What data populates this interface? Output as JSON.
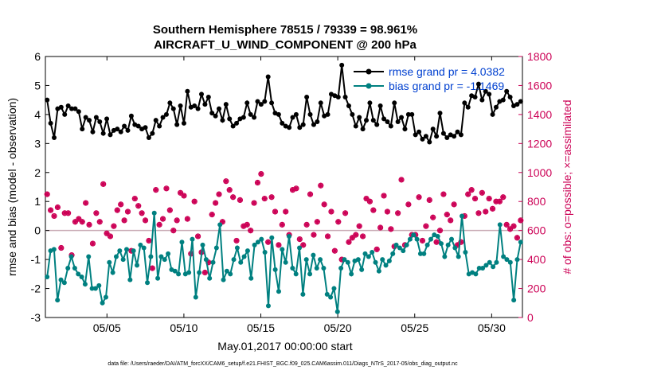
{
  "chart_data": {
    "type": "line",
    "title": "Southern Hemisphere 78515 / 79339 = 98.961%",
    "subtitle": "AIRCRAFT_U_WIND_COMPONENT @ 200 hPa",
    "xlabel": "May.01,2017 00:00:00 start",
    "ylabel_left": "rmse and bias (model - observation)",
    "ylabel_right": "# of obs: o=possible; ×=assimilated",
    "footer": "data file: /Users/raeder/DAI/ATM_forcXX/CAM6_setup/f.e21.FHIST_BGC.f09_025.CAM6assim.011/Diags_NTrS_2017-05/obs_diag_output.nc",
    "x_tick_labels": [
      "05/05",
      "05/10",
      "05/15",
      "05/20",
      "05/25",
      "05/30"
    ],
    "x_tick_values": [
      5,
      10,
      15,
      20,
      25,
      30
    ],
    "x_range": [
      1,
      32
    ],
    "ylim_left": [
      -3,
      6
    ],
    "y_ticks_left": [
      "-3",
      "-2",
      "-1",
      "0",
      "1",
      "2",
      "3",
      "4",
      "5",
      "6"
    ],
    "ylim_right": [
      0,
      1800
    ],
    "y_ticks_right": [
      "0",
      "200",
      "400",
      "600",
      "800",
      "1000",
      "1200",
      "1400",
      "1600",
      "1800"
    ],
    "colors": {
      "rmse": "#000000",
      "bias": "#008080",
      "obs": "#cc0055",
      "zero_line": "#c8aab4",
      "legend_text": "#0040d0"
    },
    "legend": {
      "placement": "top-right",
      "rmse": "rmse grand pr = 4.0382",
      "bias": "bias grand pr = -1.1469"
    },
    "series": [
      {
        "name": "rmse",
        "axis": "left",
        "values": [
          4.5,
          3.7,
          3.2,
          4.2,
          4.25,
          4.0,
          4.3,
          4.2,
          4.2,
          4.1,
          3.5,
          3.9,
          3.8,
          3.4,
          3.9,
          3.75,
          3.35,
          3.85,
          3.3,
          3.45,
          3.5,
          3.4,
          3.6,
          3.45,
          3.95,
          3.65,
          3.6,
          3.5,
          3.55,
          3.2,
          3.35,
          3.8,
          3.6,
          3.9,
          4.0,
          4.4,
          4.2,
          3.65,
          4.3,
          3.7,
          4.8,
          4.25,
          4.3,
          4.2,
          4.7,
          4.35,
          4.6,
          4.05,
          3.95,
          4.2,
          3.8,
          4.35,
          3.85,
          3.6,
          3.7,
          3.85,
          3.9,
          4.4,
          4.0,
          3.9,
          4.45,
          4.35,
          4.45,
          5.3,
          4.4,
          4.05,
          4.0,
          3.7,
          3.6,
          3.55,
          3.9,
          4.0,
          3.55,
          3.65,
          4.6,
          4.0,
          3.65,
          3.75,
          4.4,
          3.95,
          4.0,
          4.7,
          4.65,
          4.6,
          5.7,
          4.6,
          4.3,
          4.0,
          3.6,
          3.9,
          3.5,
          3.8,
          4.4,
          3.8,
          3.65,
          4.3,
          3.85,
          3.75,
          3.6,
          4.4,
          3.75,
          3.9,
          3.5,
          4.0,
          4.0,
          3.3,
          3.4,
          3.15,
          3.25,
          3.05,
          3.5,
          3.25,
          4.05,
          3.35,
          3.2,
          3.3,
          3.25,
          3.4,
          3.3,
          4.4,
          4.25,
          4.65,
          4.6,
          5.05,
          4.5,
          4.8,
          4.7,
          4.0,
          4.25,
          4.45,
          4.5,
          4.8,
          4.6,
          4.3,
          4.35,
          4.45
        ]
      },
      {
        "name": "bias",
        "axis": "left",
        "values": [
          -1.6,
          -0.7,
          -0.65,
          -2.4,
          -1.7,
          -1.8,
          -1.3,
          -0.9,
          -1.3,
          -1.5,
          -1.6,
          -1.85,
          -0.9,
          -2.0,
          -2.0,
          -1.9,
          -2.5,
          -2.3,
          -1.1,
          -1.45,
          -0.9,
          -0.7,
          -1.0,
          -0.65,
          -1.7,
          -0.7,
          -1.2,
          -0.5,
          -0.6,
          -1.8,
          -0.9,
          0.6,
          -1.65,
          -0.9,
          -1.0,
          -0.8,
          -1.35,
          -1.4,
          -1.5,
          -0.4,
          -1.5,
          -1.45,
          -0.3,
          -2.3,
          -1.45,
          -0.5,
          -1.0,
          -1.65,
          -1.1,
          -0.6,
          0.2,
          -1.7,
          -1.4,
          -1.5,
          -1.0,
          -0.6,
          -1.1,
          -0.9,
          -0.7,
          -1.65,
          -0.5,
          -0.4,
          -0.3,
          -0.75,
          -2.6,
          -0.25,
          -1.35,
          -2.1,
          -0.65,
          -1.1,
          -0.2,
          -1.3,
          -1.5,
          -0.6,
          -2.2,
          -1.0,
          -1.5,
          -0.85,
          -1.3,
          -1.0,
          -1.3,
          -2.2,
          -2.3,
          -2.0,
          -2.8,
          -1.3,
          -1.0,
          -1.1,
          -1.5,
          -1.05,
          -1.0,
          -1.35,
          -0.8,
          -0.9,
          -0.75,
          -1.1,
          -1.4,
          -1.0,
          -1.2,
          -1.05,
          -0.8,
          -0.5,
          -0.6,
          -0.7,
          -0.5,
          -0.3,
          -0.15,
          -0.3,
          -0.8,
          -0.8,
          -0.5,
          -0.3,
          -0.15,
          -0.2,
          -0.45,
          -0.9,
          -0.5,
          -0.3,
          -0.6,
          -0.9,
          0.5,
          -0.75,
          -1.5,
          -1.45,
          -1.5,
          -1.3,
          -1.3,
          -1.2,
          -1.1,
          -1.25,
          -1.1,
          0.2,
          -0.9,
          -1.0,
          -1.1,
          -2.4,
          -1.0,
          -0.4
        ]
      }
    ],
    "obs_possible": [
      850,
      740,
      700,
      760,
      480,
      720,
      720,
      430,
      660,
      680,
      660,
      790,
      640,
      510,
      720,
      660,
      920,
      580,
      560,
      630,
      740,
      780,
      670,
      730,
      460,
      820,
      770,
      720,
      670,
      530,
      340,
      880,
      640,
      680,
      890,
      740,
      600,
      670,
      860,
      840,
      680,
      440,
      800,
      560,
      450,
      310,
      380,
      710,
      790,
      850,
      660,
      940,
      880,
      830,
      530,
      810,
      630,
      640,
      600,
      790,
      930,
      990,
      820,
      520,
      830,
      730,
      500,
      640,
      730,
      570,
      880,
      890,
      540,
      500,
      640,
      850,
      570,
      660,
      910,
      780,
      560,
      730,
      460,
      660,
      400,
      720,
      520,
      550,
      570,
      630,
      560,
      820,
      800,
      740,
      470,
      620,
      840,
      730,
      610,
      490,
      720,
      950,
      500,
      780,
      570,
      570,
      830,
      530,
      630,
      810,
      690,
      520,
      600,
      850,
      710,
      670,
      780,
      500,
      520,
      700,
      850,
      880,
      820,
      720,
      860,
      730,
      820,
      750,
      800,
      800,
      830,
      640,
      610,
      630,
      550,
      670
    ]
  }
}
